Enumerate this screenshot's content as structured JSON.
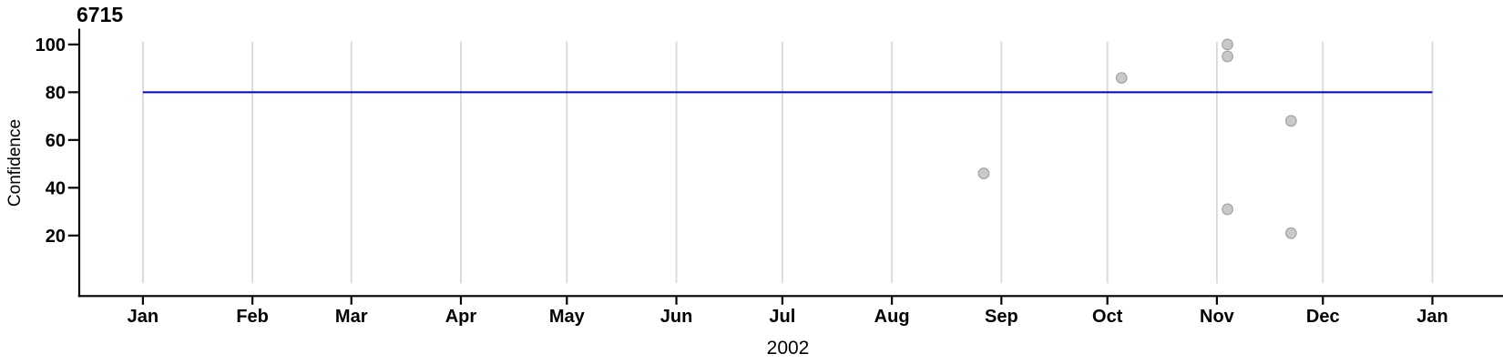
{
  "chart_data": {
    "type": "scatter",
    "title": "6715",
    "xlabel": "2002",
    "ylabel": "Confidence",
    "x_axis": {
      "unit": "months of year 2002 through Jan 2003",
      "tick_labels": [
        "Jan",
        "Feb",
        "Mar",
        "Apr",
        "May",
        "Jun",
        "Jul",
        "Aug",
        "Sep",
        "Oct",
        "Nov",
        "Dec",
        "Jan"
      ],
      "tick_day_offsets": [
        0,
        31,
        59,
        90,
        120,
        151,
        181,
        212,
        243,
        273,
        304,
        334,
        365
      ],
      "range_days": [
        0,
        365
      ],
      "grid": true
    },
    "y_axis": {
      "ticks": [
        20,
        40,
        60,
        80,
        100
      ],
      "tick_labels": [
        "20",
        "40",
        "60",
        "80",
        "100"
      ],
      "ylim": [
        0,
        101.2
      ],
      "grid": false
    },
    "reference_line": {
      "value": 80,
      "color": "#0000cc",
      "span_days": [
        0,
        365
      ]
    },
    "series": [
      {
        "name": "Confidence",
        "marker": {
          "shape": "circle",
          "fill": "#c9c9c9",
          "stroke": "#a3a3a3"
        },
        "points": [
          {
            "date": "2002-08-27",
            "day_offset": 238,
            "value": 46
          },
          {
            "date": "2002-10-05",
            "day_offset": 277,
            "value": 86
          },
          {
            "date": "2002-11-04",
            "day_offset": 307,
            "value": 100
          },
          {
            "date": "2002-11-04",
            "day_offset": 307,
            "value": 95
          },
          {
            "date": "2002-11-04",
            "day_offset": 307,
            "value": 31
          },
          {
            "date": "2002-11-22",
            "day_offset": 325,
            "value": 68
          },
          {
            "date": "2002-11-22",
            "day_offset": 325,
            "value": 21
          }
        ]
      }
    ]
  }
}
